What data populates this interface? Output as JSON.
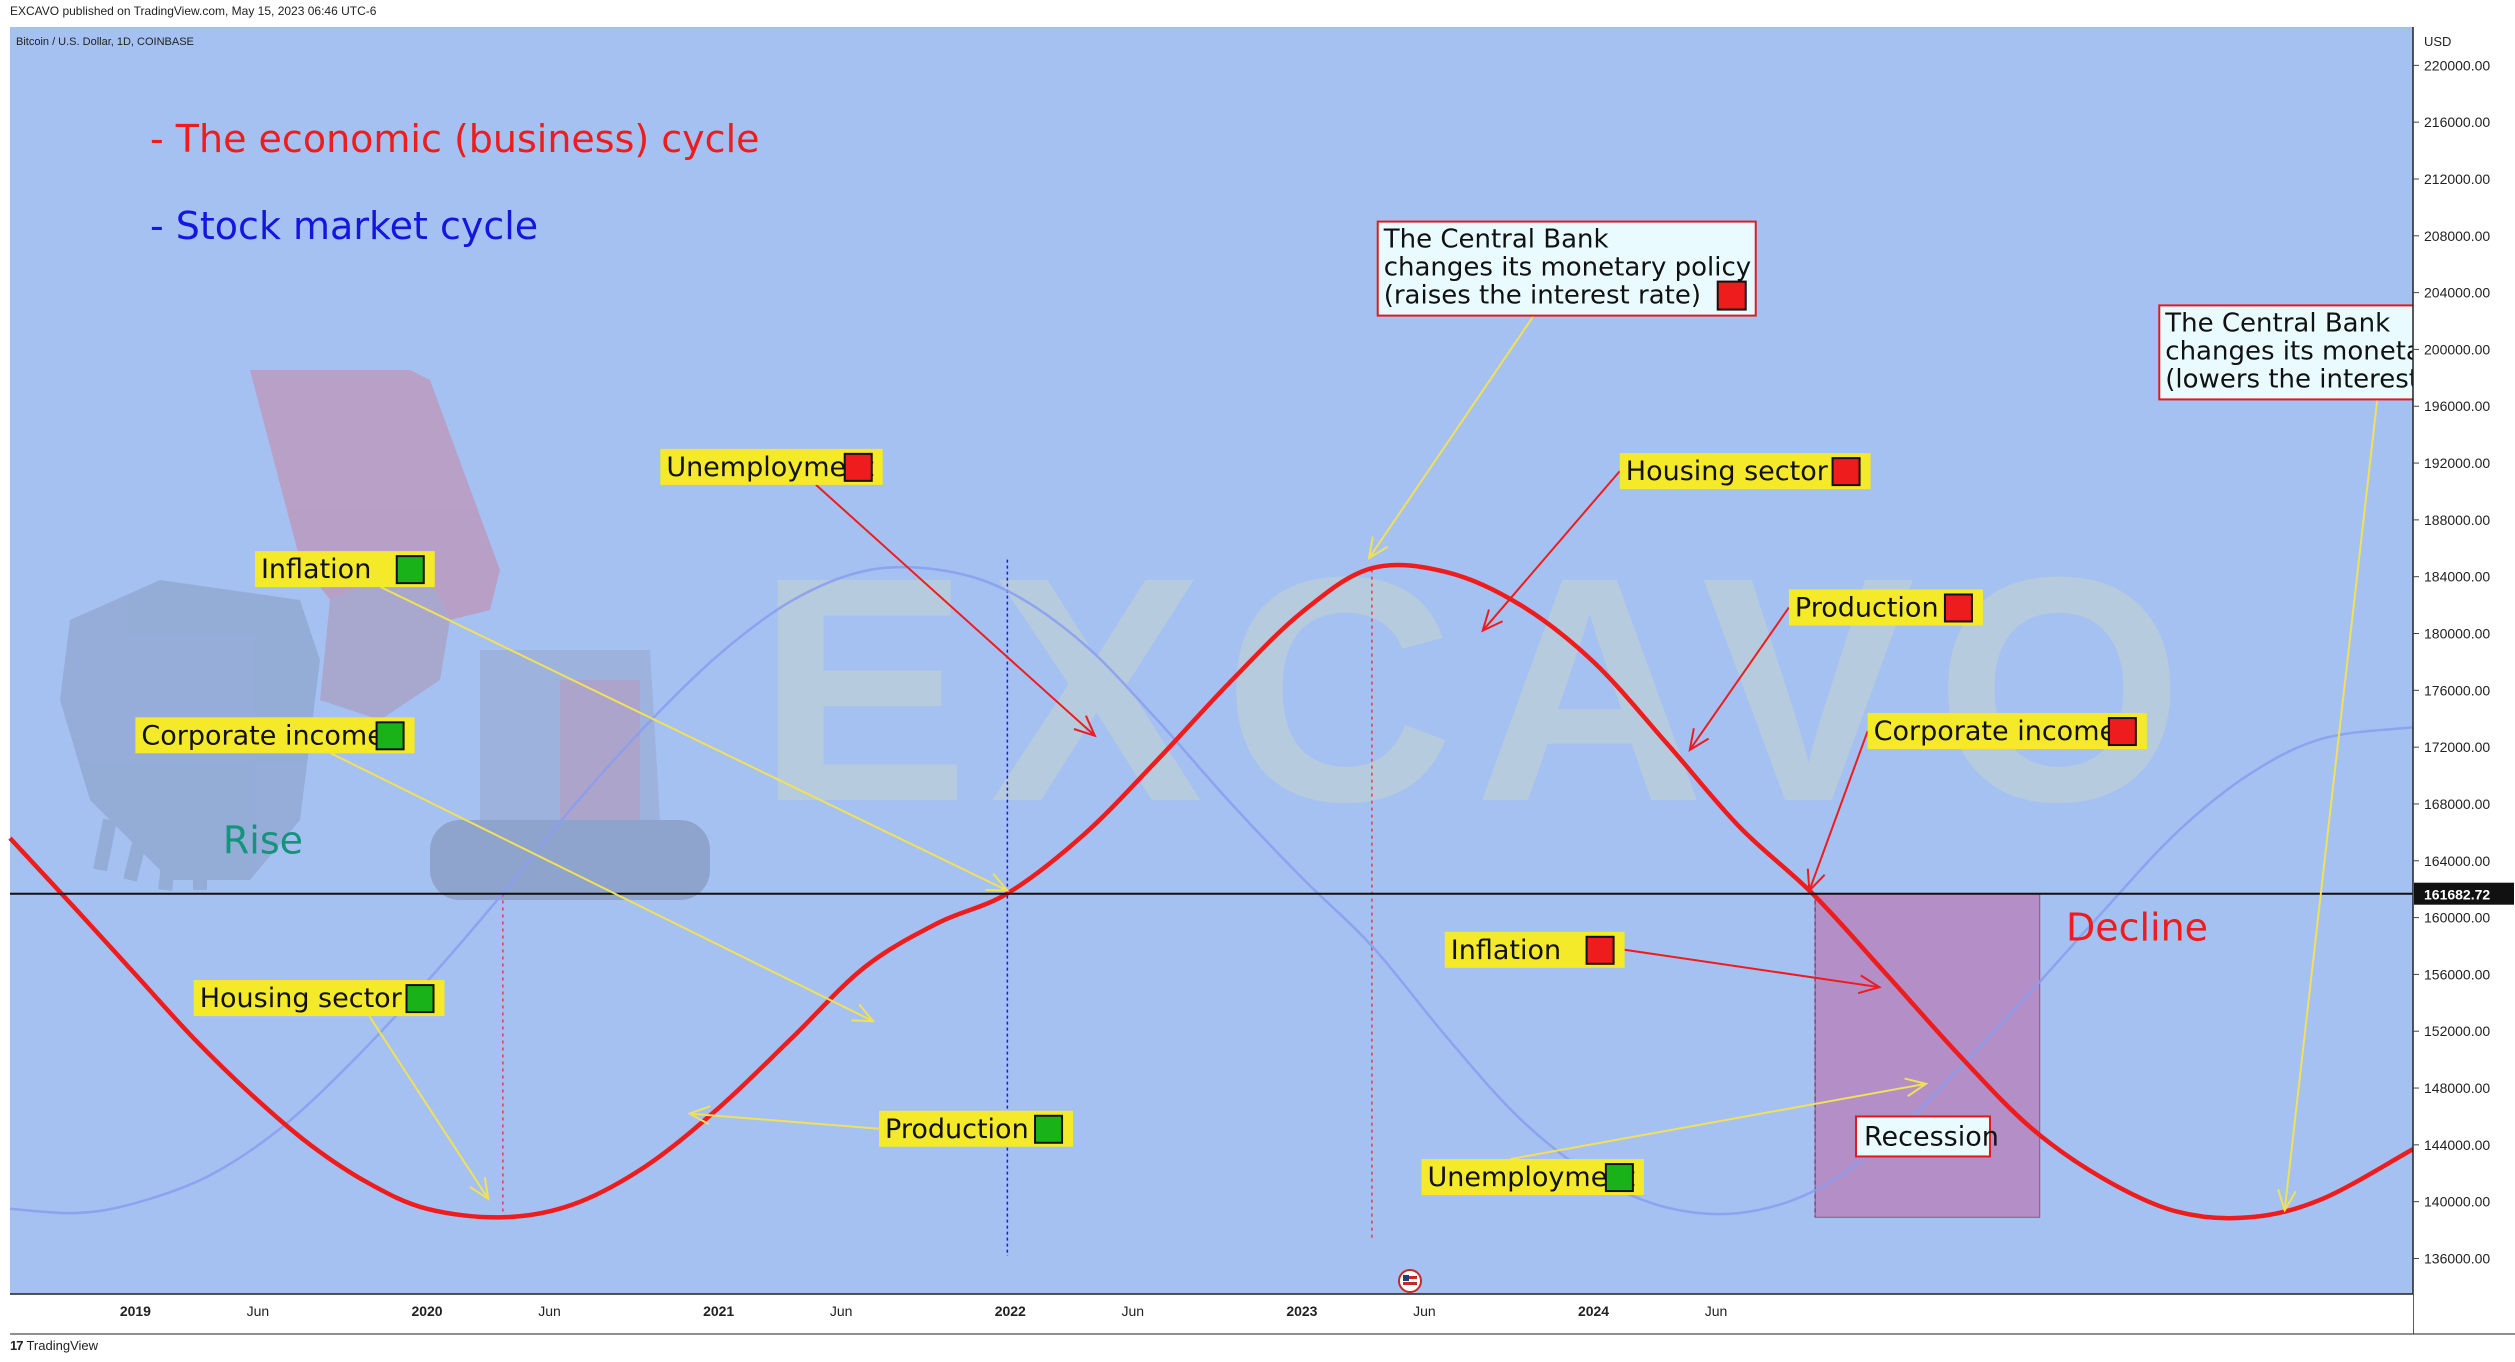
{
  "header": {
    "published": "EXCAVO published on TradingView.com, May 15, 2023 06:46 UTC-6"
  },
  "footer": {
    "logo": "17",
    "brand": "TradingView"
  },
  "chart_data": {
    "type": "line",
    "symbol_label": "Bitcoin / U.S. Dollar, 1D, COINBASE",
    "currency": "USD",
    "watermark": "EXCAVO",
    "price_axis_ticks": [
      "220000.00",
      "216000.00",
      "212000.00",
      "208000.00",
      "204000.00",
      "200000.00",
      "196000.00",
      "192000.00",
      "188000.00",
      "184000.00",
      "180000.00",
      "176000.00",
      "172000.00",
      "168000.00",
      "164000.00",
      "160000.00",
      "156000.00",
      "152000.00",
      "148000.00",
      "144000.00",
      "140000.00",
      "136000.00"
    ],
    "price_axis_values": [
      220000,
      216000,
      212000,
      208000,
      204000,
      200000,
      196000,
      192000,
      188000,
      184000,
      180000,
      176000,
      172000,
      168000,
      164000,
      160000,
      156000,
      152000,
      148000,
      144000,
      140000,
      136000
    ],
    "ylim": [
      133500,
      222700
    ],
    "time_axis_ticks": [
      {
        "label": "2019",
        "bold": true,
        "t": 2019.0
      },
      {
        "label": "Jun",
        "bold": false,
        "t": 2019.42
      },
      {
        "label": "2020",
        "bold": true,
        "t": 2020.0
      },
      {
        "label": "Jun",
        "bold": false,
        "t": 2020.42
      },
      {
        "label": "2021",
        "bold": true,
        "t": 2021.0
      },
      {
        "label": "Jun",
        "bold": false,
        "t": 2021.42
      },
      {
        "label": "2022",
        "bold": true,
        "t": 2022.0
      },
      {
        "label": "Jun",
        "bold": false,
        "t": 2022.42
      },
      {
        "label": "2023",
        "bold": true,
        "t": 2023.0
      },
      {
        "label": "Jun",
        "bold": false,
        "t": 2023.42
      },
      {
        "label": "2024",
        "bold": true,
        "t": 2024.0
      },
      {
        "label": "Jun",
        "bold": false,
        "t": 2024.42
      }
    ],
    "xlim": [
      2018.57,
      2026.81
    ],
    "current_price_label": "161682.72",
    "current_price": 161682.72,
    "series": [
      {
        "name": "- The economic (business) cycle",
        "color": "#ee1c1c",
        "x": [
          2018.57,
          2018.8,
          2019.0,
          2019.2,
          2019.4,
          2019.6,
          2019.8,
          2020.0,
          2020.26,
          2020.5,
          2020.75,
          2021.0,
          2021.25,
          2021.5,
          2021.75,
          2021.99,
          2022.25,
          2022.5,
          2022.75,
          2023.0,
          2023.24,
          2023.5,
          2023.75,
          2024.0,
          2024.25,
          2024.5,
          2024.75,
          2025.0,
          2025.25,
          2025.5,
          2025.75,
          2026.0,
          2026.25,
          2026.5,
          2026.81
        ],
        "y": [
          165600,
          160500,
          156000,
          151500,
          147500,
          144000,
          141300,
          139500,
          138900,
          139800,
          142500,
          146600,
          151500,
          156500,
          159600,
          161700,
          165800,
          171000,
          176500,
          181500,
          184600,
          184300,
          182000,
          178000,
          172300,
          166400,
          161700,
          156100,
          150400,
          145200,
          141600,
          139300,
          138900,
          140200,
          143700
        ]
      },
      {
        "name": "- Stock market cycle",
        "color": "#8a9ef0",
        "x": [
          2018.57,
          2018.8,
          2019.0,
          2019.25,
          2019.5,
          2019.75,
          2020.0,
          2020.26,
          2020.5,
          2020.75,
          2021.0,
          2021.25,
          2021.5,
          2021.75,
          2021.99,
          2022.25,
          2022.5,
          2022.75,
          2023.0,
          2023.24,
          2023.5,
          2023.75,
          2024.0,
          2024.25,
          2024.5,
          2024.75,
          2025.0,
          2025.25,
          2025.5,
          2025.75,
          2026.0,
          2026.25,
          2026.5,
          2026.81
        ],
        "y": [
          139500,
          139200,
          139900,
          141800,
          145200,
          150000,
          155500,
          161700,
          167800,
          173500,
          178500,
          182300,
          184400,
          184500,
          183000,
          179300,
          174000,
          168200,
          162800,
          158000,
          151500,
          145800,
          141800,
          139600,
          139200,
          140700,
          144200,
          149300,
          154800,
          160500,
          166000,
          170100,
          172600,
          173400
        ]
      }
    ],
    "title_lines": [
      {
        "text": "- The economic (business) cycle",
        "color": "#ee1c1c"
      },
      {
        "text": "- Stock market cycle",
        "color": "#1515e0"
      }
    ],
    "annotations": [
      {
        "text": "Inflation",
        "marker": "green",
        "box_x": 2019.41,
        "box_y": 185800,
        "tip_x": 2021.99,
        "tip_y": 161900,
        "arrow_color": "#f0e05a"
      },
      {
        "text": "Corporate income",
        "marker": "green",
        "box_x": 2019.0,
        "box_y": 174100,
        "tip_x": 2021.53,
        "tip_y": 152700,
        "arrow_color": "#f0e05a"
      },
      {
        "text": "Housing sector",
        "marker": "green",
        "box_x": 2019.2,
        "box_y": 155600,
        "tip_x": 2020.21,
        "tip_y": 140200,
        "arrow_color": "#f0e05a"
      },
      {
        "text": "Production",
        "marker": "green",
        "box_x": 2021.55,
        "box_y": 146400,
        "tip_x": 2020.9,
        "tip_y": 146200,
        "arrow_color": "#f0e05a"
      },
      {
        "text": "Unemployment",
        "marker": "red",
        "box_x": 2020.8,
        "box_y": 193000,
        "tip_x": 2022.29,
        "tip_y": 172800,
        "arrow_color": "#ee1c1c"
      },
      {
        "text": "Housing sector",
        "marker": "red",
        "box_x": 2024.09,
        "box_y": 192700,
        "tip_x": 2023.62,
        "tip_y": 180200,
        "arrow_color": "#ee1c1c"
      },
      {
        "text": "Production",
        "marker": "red",
        "box_x": 2024.67,
        "box_y": 183100,
        "tip_x": 2024.33,
        "tip_y": 171800,
        "arrow_color": "#ee1c1c"
      },
      {
        "text": "Corporate income",
        "marker": "red",
        "box_x": 2024.94,
        "box_y": 174400,
        "tip_x": 2024.74,
        "tip_y": 161900,
        "arrow_color": "#ee1c1c"
      },
      {
        "text": "Inflation",
        "marker": "red",
        "box_x": 2023.49,
        "box_y": 159000,
        "tip_x": 2024.98,
        "tip_y": 155100,
        "arrow_color": "#ee1c1c"
      },
      {
        "text": "Unemployment",
        "marker": "green",
        "box_x": 2023.41,
        "box_y": 143000,
        "tip_x": 2025.14,
        "tip_y": 148300,
        "arrow_color": "#f0e05a"
      }
    ],
    "central_bank_notes": [
      {
        "lines": [
          "The Central Bank",
          "changes its monetary policy",
          "(raises the interest  rate)"
        ],
        "marker": "red",
        "box_x": 2023.26,
        "box_y": 209000,
        "tip_x": 2023.23,
        "tip_y": 185300
      },
      {
        "lines": [
          "The Central Bank",
          "changes its monetary policy",
          "(lowers the interest rate)"
        ],
        "marker": "green",
        "box_x": 2025.94,
        "box_y": 203100,
        "tip_x": 2026.37,
        "tip_y": 139400
      }
    ],
    "phase_labels": [
      {
        "text": "Rise",
        "color": "#14947d",
        "x": 2019.3,
        "y": 164500
      },
      {
        "text": "Decline",
        "color": "#ee1c1c",
        "x": 2025.62,
        "y": 158400
      }
    ],
    "recession": {
      "text": "Recession",
      "x0": 2024.76,
      "x1": 2025.53,
      "y0": 138900,
      "y1": 161700
    },
    "vertical_markers": [
      {
        "t": 2020.26,
        "y_top": 161700,
        "color": "#e04040",
        "dash": "3,4"
      },
      {
        "t": 2021.99,
        "y_top": 185200,
        "color": "#1a1ae0",
        "dash": "3,3"
      },
      {
        "t": 2023.24,
        "y_top": 184500,
        "color": "#e04040",
        "dash": "3,4"
      },
      {
        "t": 2024.76,
        "y_top": 161700,
        "color": "#333333",
        "dash": "4,3"
      }
    ],
    "colors": {
      "background": "#a5c1f1",
      "label_bg": "#f5ea2a",
      "green_marker": "#19b219",
      "red_marker": "#ee1c1c",
      "note_bg": "#e9fbff"
    }
  }
}
